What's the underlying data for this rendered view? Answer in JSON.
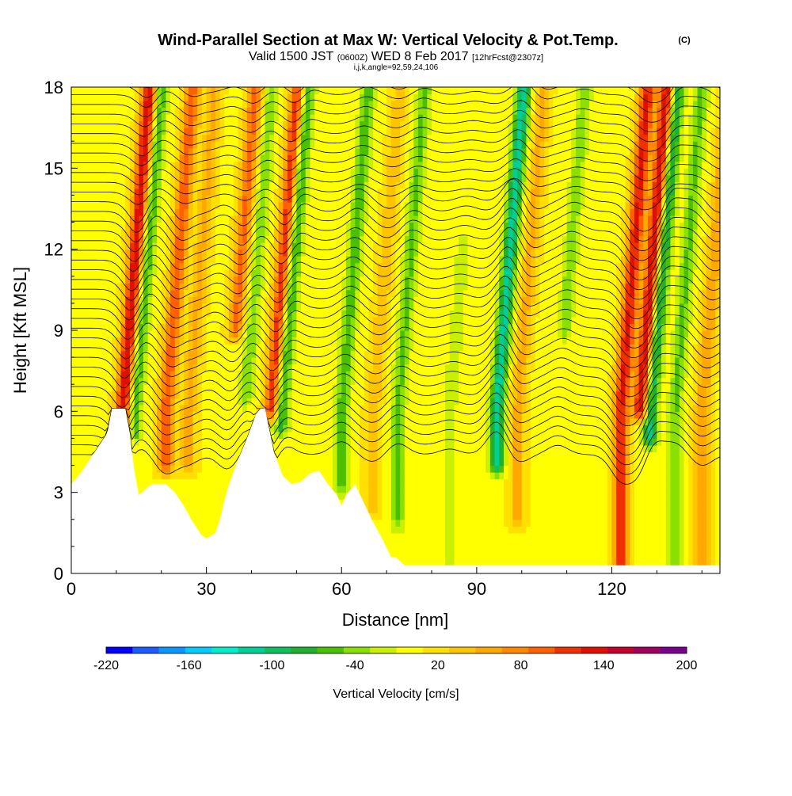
{
  "title": {
    "main": "Wind-Parallel Section at Max W: Vertical Velocity & Pot.Temp.",
    "copyright": "(C)",
    "valid_prefix": "Valid 1500 JST",
    "valid_utc": "(0600Z)",
    "valid_date": "WED 8 Feb 2017",
    "forecast": "[12hrFcst@2307z]",
    "indices": "i,j,k,angle=92,59,24,106"
  },
  "chart_data": {
    "type": "heatmap",
    "xlabel": "Distance [nm]",
    "ylabel": "Height [Kft MSL]",
    "xlim": [
      0,
      144
    ],
    "ylim": [
      0,
      18
    ],
    "x_ticks": [
      0,
      30,
      60,
      90,
      120
    ],
    "y_ticks": [
      0,
      3,
      6,
      9,
      12,
      15,
      18
    ],
    "colorbar": {
      "label": "Vertical Velocity [cm/s]",
      "min": -220,
      "max": 200,
      "step": 20,
      "tick_labels": [
        "-220",
        "-160",
        "-100",
        "-40",
        "20",
        "80",
        "140",
        "200"
      ],
      "colors": [
        "#0000ff",
        "#1a5cff",
        "#0a96ff",
        "#00ccff",
        "#00eecc",
        "#00d098",
        "#10c060",
        "#20b030",
        "#4ac000",
        "#8ae000",
        "#c8f000",
        "#ffff00",
        "#ffe000",
        "#ffc400",
        "#ffa800",
        "#ff8800",
        "#ff6000",
        "#f03000",
        "#e01000",
        "#c40030",
        "#a00060",
        "#7a0090"
      ]
    },
    "terrain_profile": {
      "distance_nm": [
        0,
        2,
        4,
        6,
        8,
        9,
        11,
        12,
        13,
        14,
        15,
        17,
        18,
        21,
        23,
        25,
        27,
        29,
        30,
        32,
        33,
        34,
        35,
        37,
        39,
        41,
        42,
        43,
        44,
        45,
        47,
        49,
        51,
        53,
        55,
        57,
        59,
        60,
        61,
        63,
        65,
        67,
        69,
        71,
        72,
        74,
        76,
        78,
        80,
        144
      ],
      "height_kft": [
        3.3,
        3.7,
        4.2,
        4.7,
        5.2,
        6.1,
        6.1,
        6.1,
        5.2,
        3.8,
        2.9,
        3.2,
        3.3,
        3.3,
        3.0,
        2.5,
        1.9,
        1.4,
        1.3,
        1.5,
        2.0,
        2.7,
        3.3,
        4.2,
        5.0,
        5.9,
        6.1,
        6.1,
        5.3,
        4.5,
        3.6,
        3.3,
        3.4,
        3.7,
        3.8,
        3.3,
        2.9,
        2.5,
        2.9,
        3.3,
        2.6,
        1.9,
        1.3,
        0.6,
        0.6,
        0.3,
        0.3,
        0.3,
        0.3,
        0.3
      ]
    },
    "vertical_velocity_features": [
      {
        "x_nm": 11.5,
        "w_cms": 150,
        "z_range_kft": [
          5.2,
          18
        ]
      },
      {
        "x_nm": 14,
        "w_cms": -80,
        "z_range_kft": [
          5.2,
          18
        ]
      },
      {
        "x_nm": 21,
        "w_cms": 100,
        "z_range_kft": [
          4,
          18
        ]
      },
      {
        "x_nm": 26,
        "w_cms": 50,
        "z_range_kft": [
          4,
          18
        ]
      },
      {
        "x_nm": 35,
        "w_cms": 90,
        "z_range_kft": [
          9,
          18
        ]
      },
      {
        "x_nm": 38.5,
        "w_cms": -50,
        "z_range_kft": [
          6.5,
          18
        ]
      },
      {
        "x_nm": 44.5,
        "w_cms": 130,
        "z_range_kft": [
          6,
          18
        ]
      },
      {
        "x_nm": 46.5,
        "w_cms": -100,
        "z_range_kft": [
          5.5,
          18
        ]
      },
      {
        "x_nm": 60,
        "w_cms": -70,
        "z_range_kft": [
          3.3,
          18
        ]
      },
      {
        "x_nm": 67,
        "w_cms": 40,
        "z_range_kft": [
          2.5,
          18
        ]
      },
      {
        "x_nm": 72.5,
        "w_cms": -60,
        "z_range_kft": [
          2,
          18
        ]
      },
      {
        "x_nm": 84,
        "w_cms": -30,
        "z_range_kft": [
          0.5,
          12
        ]
      },
      {
        "x_nm": 94.5,
        "w_cms": -130,
        "z_range_kft": [
          4,
          18
        ]
      },
      {
        "x_nm": 99,
        "w_cms": 50,
        "z_range_kft": [
          2,
          18
        ]
      },
      {
        "x_nm": 108,
        "w_cms": -50,
        "z_range_kft": [
          9,
          18
        ]
      },
      {
        "x_nm": 122,
        "w_cms": 130,
        "z_range_kft": [
          0.3,
          18
        ]
      },
      {
        "x_nm": 126.5,
        "w_cms": 160,
        "z_range_kft": [
          6,
          18
        ]
      },
      {
        "x_nm": 128.5,
        "w_cms": -130,
        "z_range_kft": [
          5,
          18
        ]
      },
      {
        "x_nm": 134,
        "w_cms": -60,
        "z_range_kft": [
          0.3,
          18
        ]
      },
      {
        "x_nm": 140,
        "w_cms": 60,
        "z_range_kft": [
          0.3,
          18
        ]
      }
    ]
  }
}
